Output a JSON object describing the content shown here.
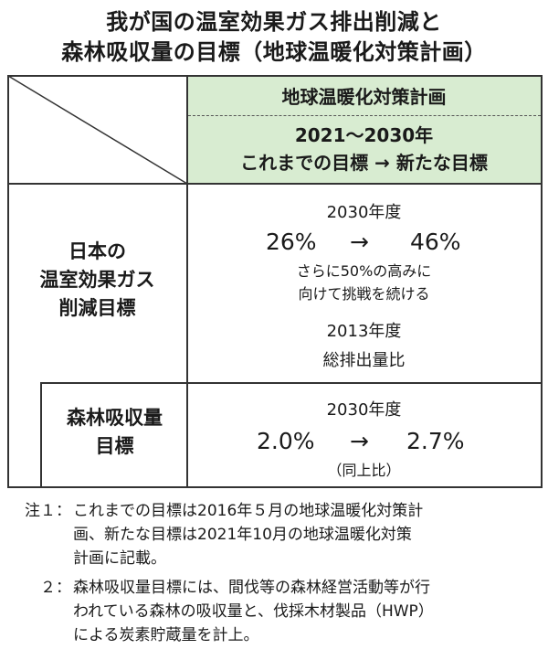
{
  "title": {
    "line1": "我が国の温室効果ガス排出削減と",
    "line2": "森林吸収量の目標（地球温暖化対策計画）"
  },
  "table": {
    "header_plan": "地球温暖化対策計画",
    "header_period": "2021～2030年",
    "header_change": "これまでの目標 → 新たな目標",
    "ghg": {
      "label_lines": [
        "日本の",
        "温室効果ガス",
        "削減目標"
      ],
      "year": "2030年度",
      "from": "26%",
      "arrow": "→",
      "to": "46%",
      "note_line1": "さらに50%の高みに",
      "note_line2": "向けて挑戦を続ける",
      "base_year": "2013年度",
      "base_desc": "総排出量比"
    },
    "forest": {
      "label_lines": [
        "森林吸収量",
        "目標"
      ],
      "year": "2030年度",
      "from": "2.0%",
      "arrow": "→",
      "to": "2.7%",
      "ratio": "（同上比）"
    }
  },
  "notes": [
    {
      "label": "注１：",
      "lines": [
        "これまでの目標は2016年５月の地球温暖化対策計",
        "画、新たな目標は2021年10月の地球温暖化対策",
        "計画に記載。"
      ]
    },
    {
      "label": "２：",
      "lines": [
        "森林吸収量目標には、間伐等の森林経営活動等が行",
        "われている森林の吸収量と、伐採木材製品（HWP）",
        "による炭素貯蔵量を計上。"
      ]
    }
  ]
}
